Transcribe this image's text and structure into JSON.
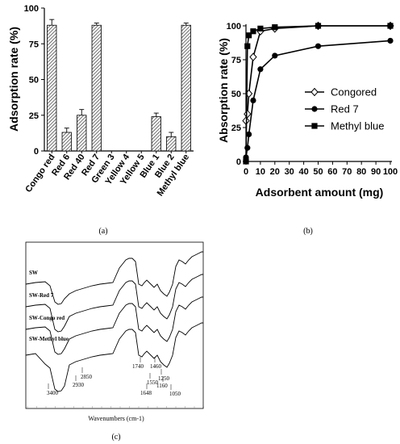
{
  "panels": {
    "a": "(a)",
    "b": "(b)",
    "c": "(c)"
  },
  "chart_data": [
    {
      "type": "bar",
      "panel": "(a)",
      "ylabel": "Adsorption rate (%)",
      "ylim": [
        0,
        100
      ],
      "yticks": [
        "0",
        "25",
        "50",
        "75",
        "100"
      ],
      "categories": [
        "Congo red",
        "Red 6",
        "Red 40",
        "Red 7",
        "Green 3",
        "Yellow 4",
        "Yellow 5",
        "Blue 1",
        "Blue 2",
        "Methyl blue"
      ],
      "values": [
        88,
        13,
        25,
        88,
        0,
        0,
        0,
        24,
        10,
        88
      ],
      "errors": [
        4,
        3,
        4,
        1.5,
        0,
        0,
        0,
        2.5,
        3,
        1.5
      ],
      "bar_fill": "hatched"
    },
    {
      "type": "line",
      "panel": "(b)",
      "xlabel": "Adsorbent amount (mg)",
      "ylabel": "Absorption rate (%)",
      "xlim": [
        0,
        100
      ],
      "ylim": [
        0,
        100
      ],
      "xticks": [
        "0",
        "10",
        "20",
        "30",
        "40",
        "50",
        "60",
        "70",
        "80",
        "90",
        "100"
      ],
      "yticks": [
        "0",
        "25",
        "50",
        "75",
        "100"
      ],
      "legend_position": "right",
      "series": [
        {
          "name": "Congored",
          "marker": "open-diamond",
          "x": [
            0,
            1,
            2,
            5,
            10,
            20,
            50,
            100
          ],
          "y": [
            30,
            35,
            50,
            77,
            96,
            98,
            100,
            100
          ]
        },
        {
          "name": "Red 7",
          "marker": "filled-circle",
          "x": [
            0,
            1,
            2,
            5,
            10,
            20,
            50,
            100
          ],
          "y": [
            3,
            10,
            20,
            45,
            68,
            78,
            85,
            89
          ]
        },
        {
          "name": "Methyl blue",
          "marker": "filled-square",
          "x": [
            0,
            1,
            2,
            5,
            10,
            20,
            50,
            100
          ],
          "y": [
            0,
            85,
            93,
            96,
            98,
            99,
            100,
            100
          ]
        }
      ]
    },
    {
      "type": "line",
      "panel": "(c)",
      "xlabel": "Wavenumbers (cm-1)",
      "series": [
        {
          "name": "SW"
        },
        {
          "name": "SW-Red 7"
        },
        {
          "name": "SW-Congo red"
        },
        {
          "name": "SW-Methyl blue"
        }
      ],
      "peak_labels": [
        "3400",
        "2930",
        "2850",
        "1740",
        "1648",
        "1550",
        "1460",
        "1250",
        "1160",
        "1050"
      ]
    }
  ]
}
